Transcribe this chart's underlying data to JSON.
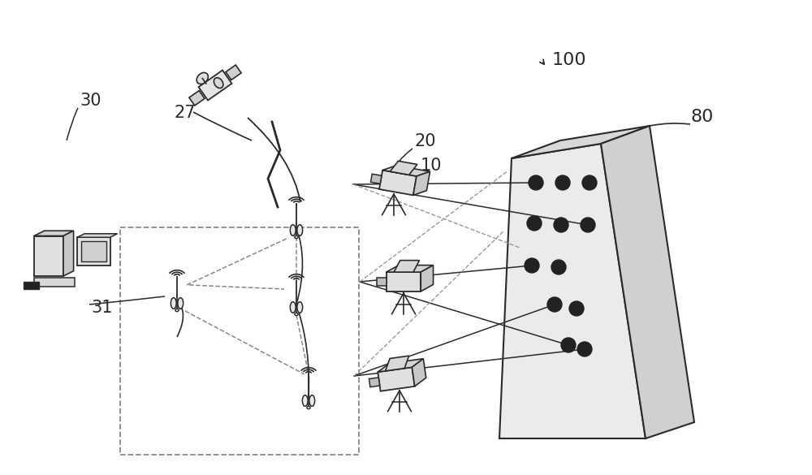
{
  "bg_color": "#ffffff",
  "line_color": "#2a2a2a",
  "dashed_color": "#888888",
  "label_100": "100",
  "label_27": "27",
  "label_20": "20",
  "label_10": "10",
  "label_80": "80",
  "label_30": "30",
  "label_31": "31",
  "figsize": [
    10.0,
    5.85
  ],
  "dpi": 100
}
